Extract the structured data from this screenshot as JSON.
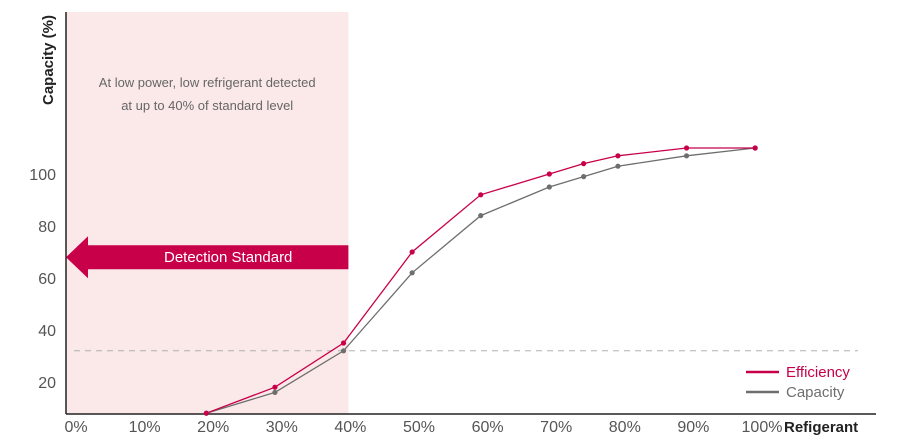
{
  "chart_data": {
    "type": "line",
    "ylabel": "Capacity (%)",
    "xlabel": "Refigerant",
    "x_ticks": [
      "0%",
      "10%",
      "20%",
      "30%",
      "40%",
      "50%",
      "60%",
      "70%",
      "80%",
      "90%",
      "100%"
    ],
    "y_ticks": [
      "20",
      "40",
      "60",
      "80",
      "100"
    ],
    "xlim": [
      0,
      100
    ],
    "ylim": [
      8,
      137
    ],
    "grid": false,
    "legend_position": "bottom-right",
    "series": [
      {
        "name": "Efficiency",
        "color": "#c8004a",
        "x": [
          19,
          29,
          39,
          49,
          59,
          69,
          74,
          79,
          89,
          99
        ],
        "y": [
          8,
          18,
          35,
          70,
          92,
          100,
          104,
          107,
          110,
          110
        ]
      },
      {
        "name": "Capacity",
        "color": "#6e6e6e",
        "x": [
          19,
          29,
          39,
          49,
          59,
          69,
          74,
          79,
          89,
          99
        ],
        "y": [
          8,
          16,
          32,
          62,
          84,
          95,
          99,
          103,
          107,
          110
        ]
      }
    ],
    "highlight_region": {
      "x_range": [
        0,
        40
      ],
      "color": "#fbe9e9",
      "note_lines": [
        "At low power, low refrigerant detected",
        "at up to 40% of standard level"
      ]
    },
    "arrow": {
      "label": "Detection Standard",
      "color": "#c8004a",
      "y": 68
    },
    "threshold_line": {
      "y": 32,
      "style": "dashed",
      "color": "#b0b0b0"
    }
  }
}
